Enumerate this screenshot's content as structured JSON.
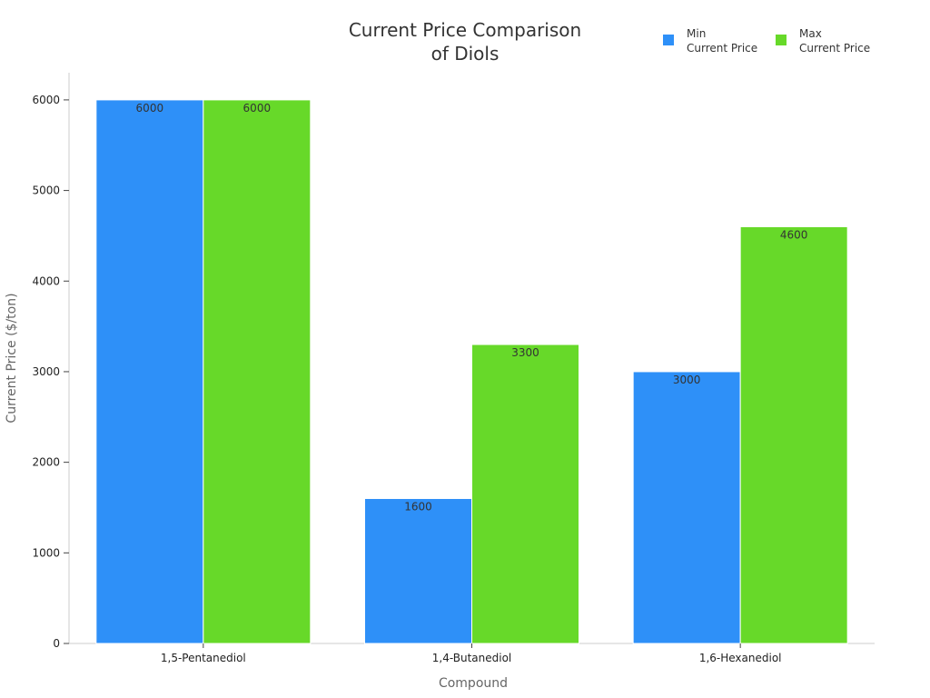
{
  "chart_data": {
    "type": "bar",
    "title_lines": [
      "Current Price Comparison",
      "of Diols"
    ],
    "xlabel": "Compound",
    "ylabel": "Current Price ($/ton)",
    "categories": [
      "1,5-Pentanediol",
      "1,4-Butanediol",
      "1,6-Hexanediol"
    ],
    "series": [
      {
        "legend_lines": [
          "Min",
          "Current Price"
        ],
        "color": "#2e90f8",
        "values": [
          6000,
          1600,
          3000
        ]
      },
      {
        "legend_lines": [
          "Max",
          "Current Price"
        ],
        "color": "#67d929",
        "values": [
          6000,
          3300,
          4600
        ]
      }
    ],
    "ylim": [
      0,
      6300
    ],
    "yticks": [
      0,
      1000,
      2000,
      3000,
      4000,
      5000,
      6000
    ],
    "grid": false,
    "legend_position": "top-right",
    "data_labels": true
  }
}
